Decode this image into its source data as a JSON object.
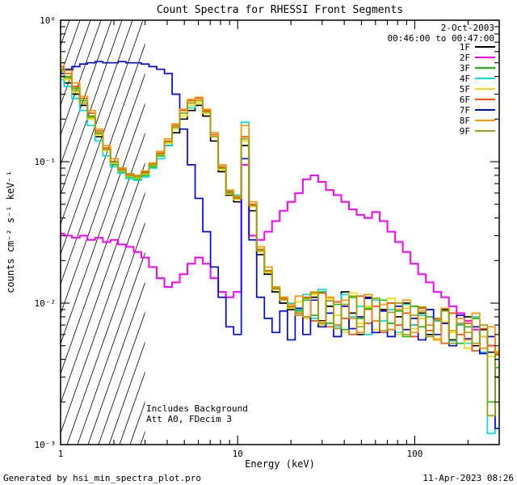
{
  "title": "Count Spectra for RHESSI Front Segments",
  "annotations": {
    "date": "2-Oct-2003",
    "time_range": "00:46:00 to 00:47:00",
    "background_note": "Includes Background",
    "attenuator_note": "Att A0, FDecim 3"
  },
  "footer": {
    "generated_by": "Generated by hsi_min_spectra_plot.pro",
    "timestamp": "11-Apr-2023 08:26"
  },
  "axes": {
    "xlabel": "Energy (keV)",
    "ylabel": "counts cm⁻² s⁻¹ keV⁻¹",
    "x_ticks": [
      {
        "value": 1,
        "label": "1"
      },
      {
        "value": 10,
        "label": "10"
      },
      {
        "value": 100,
        "label": "100"
      }
    ],
    "y_ticks": [
      {
        "value": 1,
        "label": "10⁰"
      },
      {
        "value": 0.1,
        "label": "10⁻¹"
      },
      {
        "value": 0.01,
        "label": "10⁻²"
      },
      {
        "value": 0.001,
        "label": "10⁻³"
      }
    ]
  },
  "legend": [
    {
      "label": "1F",
      "color": "#000000"
    },
    {
      "label": "2F",
      "color": "#FF00FF"
    },
    {
      "label": "3F",
      "color": "#00C800"
    },
    {
      "label": "4F",
      "color": "#00DCDC"
    },
    {
      "label": "5F",
      "color": "#F0DC00"
    },
    {
      "label": "6F",
      "color": "#FF5000"
    },
    {
      "label": "7F",
      "color": "#0000FF"
    },
    {
      "label": "8F",
      "color": "#FF9600"
    },
    {
      "label": "9F",
      "color": "#A0A000"
    }
  ],
  "chart_data": {
    "type": "line",
    "mode": "histogram-step",
    "xscale": "log",
    "yscale": "log",
    "xlim": [
      1,
      300
    ],
    "ylim": [
      0.001,
      1
    ],
    "grid": false,
    "legend_position": "top-right-inside",
    "excluded_region": {
      "xmin": 1,
      "xmax": 3,
      "style": "diagonal-hatch"
    },
    "x": [
      1.0,
      1.1,
      1.22,
      1.35,
      1.49,
      1.65,
      1.82,
      2.01,
      2.22,
      2.46,
      2.72,
      3.0,
      3.32,
      3.67,
      4.06,
      4.48,
      4.95,
      5.47,
      6.05,
      6.68,
      7.39,
      8.17,
      9.03,
      9.97,
      11.02,
      12.18,
      13.46,
      14.88,
      16.44,
      18.17,
      20.09,
      22.2,
      24.53,
      27.11,
      29.96,
      33.12,
      36.6,
      40.45,
      44.7,
      49.4,
      54.6,
      60.34,
      66.69,
      73.7,
      81.45,
      90.02,
      99.48,
      109.95,
      121.51,
      134.29,
      148.41,
      164.02,
      181.27,
      200.34,
      221.41,
      244.69,
      270.43,
      298.87
    ],
    "series": [
      {
        "name": "1F",
        "color": "#000000",
        "values": [
          0.4,
          0.36,
          0.3,
          0.25,
          0.2,
          0.15,
          0.12,
          0.1,
          0.09,
          0.082,
          0.08,
          0.085,
          0.095,
          0.11,
          0.13,
          0.16,
          0.2,
          0.23,
          0.25,
          0.21,
          0.14,
          0.085,
          0.058,
          0.052,
          0.13,
          0.045,
          0.022,
          0.016,
          0.012,
          0.01,
          0.009,
          0.0085,
          0.008,
          0.011,
          0.0075,
          0.0095,
          0.007,
          0.012,
          0.0085,
          0.006,
          0.011,
          0.0075,
          0.009,
          0.0065,
          0.008,
          0.01,
          0.007,
          0.0085,
          0.006,
          0.0075,
          0.009,
          0.0055,
          0.007,
          0.008,
          0.005,
          0.0065,
          0.0045,
          0.003
        ]
      },
      {
        "name": "2F",
        "color": "#FF00FF",
        "values": [
          0.031,
          0.03,
          0.029,
          0.03,
          0.028,
          0.029,
          0.027,
          0.028,
          0.026,
          0.025,
          0.023,
          0.021,
          0.018,
          0.015,
          0.013,
          0.014,
          0.016,
          0.019,
          0.021,
          0.019,
          0.015,
          0.012,
          0.011,
          0.012,
          0.095,
          0.03,
          0.028,
          0.032,
          0.038,
          0.045,
          0.052,
          0.06,
          0.075,
          0.08,
          0.072,
          0.063,
          0.058,
          0.052,
          0.046,
          0.042,
          0.04,
          0.044,
          0.038,
          0.032,
          0.027,
          0.023,
          0.019,
          0.016,
          0.014,
          0.012,
          0.011,
          0.0095,
          0.0085,
          0.0075,
          0.0065,
          0.0058,
          0.005,
          0.0045
        ]
      },
      {
        "name": "3F",
        "color": "#00C800",
        "values": [
          0.45,
          0.4,
          0.33,
          0.27,
          0.21,
          0.16,
          0.12,
          0.095,
          0.085,
          0.078,
          0.075,
          0.08,
          0.092,
          0.11,
          0.14,
          0.18,
          0.22,
          0.26,
          0.27,
          0.22,
          0.15,
          0.09,
          0.06,
          0.055,
          0.15,
          0.05,
          0.024,
          0.017,
          0.013,
          0.011,
          0.0095,
          0.0088,
          0.0105,
          0.0082,
          0.012,
          0.0072,
          0.0098,
          0.0065,
          0.011,
          0.0078,
          0.0092,
          0.0062,
          0.0105,
          0.0072,
          0.0088,
          0.0058,
          0.0095,
          0.0068,
          0.008,
          0.0055,
          0.0072,
          0.0085,
          0.0052,
          0.0068,
          0.0078,
          0.0048,
          0.002,
          0.0035
        ]
      },
      {
        "name": "4F",
        "color": "#00DCDC",
        "values": [
          0.38,
          0.34,
          0.28,
          0.23,
          0.18,
          0.14,
          0.11,
          0.092,
          0.083,
          0.076,
          0.074,
          0.078,
          0.09,
          0.105,
          0.13,
          0.17,
          0.21,
          0.24,
          0.26,
          0.23,
          0.16,
          0.095,
          0.062,
          0.058,
          0.19,
          0.052,
          0.025,
          0.018,
          0.013,
          0.011,
          0.01,
          0.009,
          0.0115,
          0.0078,
          0.0125,
          0.0085,
          0.0068,
          0.0115,
          0.008,
          0.0095,
          0.006,
          0.0105,
          0.0075,
          0.009,
          0.0062,
          0.0098,
          0.007,
          0.0082,
          0.0058,
          0.0075,
          0.0088,
          0.0054,
          0.007,
          0.0052,
          0.008,
          0.0045,
          0.0012,
          0.004
        ]
      },
      {
        "name": "5F",
        "color": "#F0DC00",
        "values": [
          0.42,
          0.38,
          0.31,
          0.26,
          0.2,
          0.155,
          0.12,
          0.098,
          0.086,
          0.079,
          0.077,
          0.082,
          0.094,
          0.112,
          0.135,
          0.17,
          0.21,
          0.25,
          0.26,
          0.22,
          0.15,
          0.088,
          0.059,
          0.054,
          0.14,
          0.048,
          0.023,
          0.0165,
          0.0125,
          0.0105,
          0.0092,
          0.0102,
          0.0078,
          0.0115,
          0.007,
          0.0108,
          0.0082,
          0.0062,
          0.0118,
          0.0072,
          0.0095,
          0.0065,
          0.0088,
          0.0108,
          0.006,
          0.0092,
          0.0066,
          0.0078,
          0.009,
          0.0056,
          0.0074,
          0.0062,
          0.0082,
          0.0048,
          0.0068,
          0.0058,
          0.0042,
          0.0046
        ]
      },
      {
        "name": "6F",
        "color": "#FF5000",
        "values": [
          0.47,
          0.42,
          0.34,
          0.28,
          0.22,
          0.165,
          0.125,
          0.1,
          0.088,
          0.08,
          0.078,
          0.084,
          0.096,
          0.115,
          0.14,
          0.18,
          0.23,
          0.27,
          0.28,
          0.23,
          0.155,
          0.092,
          0.061,
          0.056,
          0.15,
          0.05,
          0.024,
          0.017,
          0.0128,
          0.0108,
          0.0095,
          0.0085,
          0.011,
          0.0075,
          0.0118,
          0.0068,
          0.0102,
          0.0078,
          0.006,
          0.0112,
          0.0072,
          0.0095,
          0.0062,
          0.01,
          0.007,
          0.0085,
          0.0058,
          0.0092,
          0.0064,
          0.0078,
          0.0052,
          0.0085,
          0.006,
          0.0072,
          0.0046,
          0.0066,
          0.005,
          0.0043
        ]
      },
      {
        "name": "7F",
        "color": "#0000FF",
        "values": [
          0.42,
          0.45,
          0.47,
          0.49,
          0.5,
          0.51,
          0.5,
          0.5,
          0.51,
          0.5,
          0.5,
          0.49,
          0.47,
          0.45,
          0.42,
          0.3,
          0.17,
          0.095,
          0.055,
          0.032,
          0.018,
          0.011,
          0.0068,
          0.006,
          0.105,
          0.028,
          0.011,
          0.0078,
          0.0062,
          0.0088,
          0.0055,
          0.0092,
          0.006,
          0.0105,
          0.0068,
          0.0085,
          0.0058,
          0.0095,
          0.0066,
          0.008,
          0.0108,
          0.0062,
          0.0088,
          0.0058,
          0.0095,
          0.0065,
          0.0078,
          0.0055,
          0.009,
          0.006,
          0.0072,
          0.005,
          0.0082,
          0.0056,
          0.0068,
          0.0044,
          0.0058,
          0.0013
        ]
      },
      {
        "name": "8F",
        "color": "#FF9600",
        "values": [
          0.5,
          0.44,
          0.36,
          0.29,
          0.23,
          0.17,
          0.13,
          0.105,
          0.09,
          0.082,
          0.08,
          0.086,
          0.098,
          0.118,
          0.145,
          0.185,
          0.235,
          0.275,
          0.285,
          0.235,
          0.16,
          0.095,
          0.063,
          0.057,
          0.18,
          0.052,
          0.025,
          0.018,
          0.013,
          0.011,
          0.0098,
          0.0112,
          0.008,
          0.012,
          0.0074,
          0.011,
          0.007,
          0.0105,
          0.0078,
          0.0062,
          0.0115,
          0.0075,
          0.0098,
          0.0065,
          0.009,
          0.0105,
          0.0062,
          0.0088,
          0.007,
          0.0055,
          0.0092,
          0.0064,
          0.0078,
          0.0055,
          0.0085,
          0.0048,
          0.0068,
          0.0045
        ]
      },
      {
        "name": "9F",
        "color": "#A0A000",
        "values": [
          0.44,
          0.39,
          0.32,
          0.26,
          0.205,
          0.158,
          0.122,
          0.099,
          0.087,
          0.08,
          0.078,
          0.083,
          0.095,
          0.113,
          0.138,
          0.175,
          0.22,
          0.26,
          0.27,
          0.225,
          0.15,
          0.09,
          0.06,
          0.055,
          0.145,
          0.049,
          0.0235,
          0.0168,
          0.0126,
          0.0106,
          0.0094,
          0.0082,
          0.0108,
          0.0118,
          0.0072,
          0.0104,
          0.0066,
          0.0098,
          0.0112,
          0.0068,
          0.009,
          0.0108,
          0.0064,
          0.0086,
          0.01,
          0.006,
          0.0082,
          0.0094,
          0.0058,
          0.0076,
          0.0088,
          0.0052,
          0.0072,
          0.0062,
          0.0052,
          0.007,
          0.0016,
          0.0044
        ]
      }
    ]
  }
}
